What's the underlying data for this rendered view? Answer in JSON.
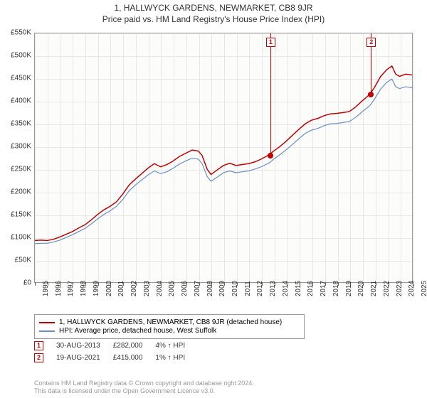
{
  "title_main": "1, HALLWYCK GARDENS, NEWMARKET, CB8 9JR",
  "title_sub": "Price paid vs. HM Land Registry's House Price Index (HPI)",
  "chart": {
    "type": "line",
    "background_color": "#fcfcfa",
    "grid_color": "#e8e8e8",
    "axis_color": "#999999",
    "label_fontsize": 10,
    "ylim": [
      0,
      550000
    ],
    "ytick_step": 50000,
    "y_prefix": "£",
    "y_suffix": "K",
    "x_years": [
      1995,
      1996,
      1997,
      1998,
      1999,
      2000,
      2001,
      2002,
      2003,
      2004,
      2005,
      2006,
      2007,
      2008,
      2009,
      2010,
      2011,
      2012,
      2013,
      2014,
      2015,
      2016,
      2017,
      2018,
      2019,
      2020,
      2021,
      2022,
      2023,
      2024,
      2025
    ],
    "series": [
      {
        "name": "red",
        "label": "1, HALLWYCK GARDENS, NEWMARKET, CB8 9JR (detached house)",
        "color": "#c00000",
        "width": 1.5,
        "points": [
          [
            1995.0,
            92000
          ],
          [
            1995.5,
            93000
          ],
          [
            1996.0,
            92000
          ],
          [
            1996.5,
            95000
          ],
          [
            1997.0,
            100000
          ],
          [
            1997.5,
            106000
          ],
          [
            1998.0,
            112000
          ],
          [
            1998.5,
            120000
          ],
          [
            1999.0,
            127000
          ],
          [
            1999.5,
            138000
          ],
          [
            2000.0,
            150000
          ],
          [
            2000.5,
            160000
          ],
          [
            2001.0,
            168000
          ],
          [
            2001.5,
            178000
          ],
          [
            2002.0,
            195000
          ],
          [
            2002.5,
            215000
          ],
          [
            2003.0,
            228000
          ],
          [
            2003.5,
            240000
          ],
          [
            2004.0,
            252000
          ],
          [
            2004.5,
            262000
          ],
          [
            2005.0,
            255000
          ],
          [
            2005.5,
            260000
          ],
          [
            2006.0,
            268000
          ],
          [
            2006.5,
            278000
          ],
          [
            2007.0,
            285000
          ],
          [
            2007.5,
            292000
          ],
          [
            2008.0,
            290000
          ],
          [
            2008.3,
            280000
          ],
          [
            2008.7,
            250000
          ],
          [
            2009.0,
            238000
          ],
          [
            2009.5,
            248000
          ],
          [
            2010.0,
            258000
          ],
          [
            2010.5,
            263000
          ],
          [
            2011.0,
            258000
          ],
          [
            2011.5,
            260000
          ],
          [
            2012.0,
            262000
          ],
          [
            2012.5,
            266000
          ],
          [
            2013.0,
            272000
          ],
          [
            2013.66,
            282000
          ],
          [
            2014.0,
            290000
          ],
          [
            2014.5,
            300000
          ],
          [
            2015.0,
            312000
          ],
          [
            2015.5,
            325000
          ],
          [
            2016.0,
            338000
          ],
          [
            2016.5,
            350000
          ],
          [
            2017.0,
            358000
          ],
          [
            2017.5,
            362000
          ],
          [
            2018.0,
            368000
          ],
          [
            2018.5,
            372000
          ],
          [
            2019.0,
            373000
          ],
          [
            2019.5,
            375000
          ],
          [
            2020.0,
            377000
          ],
          [
            2020.5,
            387000
          ],
          [
            2021.0,
            400000
          ],
          [
            2021.63,
            415000
          ],
          [
            2022.0,
            430000
          ],
          [
            2022.5,
            455000
          ],
          [
            2023.0,
            470000
          ],
          [
            2023.4,
            478000
          ],
          [
            2023.7,
            460000
          ],
          [
            2024.0,
            455000
          ],
          [
            2024.5,
            460000
          ],
          [
            2025.0,
            458000
          ]
        ]
      },
      {
        "name": "blue",
        "label": "HPI: Average price, detached house, West Suffolk",
        "color": "#6a8fc4",
        "width": 1.2,
        "points": [
          [
            1995.0,
            85000
          ],
          [
            1995.5,
            86000
          ],
          [
            1996.0,
            86000
          ],
          [
            1996.5,
            89000
          ],
          [
            1997.0,
            93000
          ],
          [
            1997.5,
            99000
          ],
          [
            1998.0,
            105000
          ],
          [
            1998.5,
            112000
          ],
          [
            1999.0,
            119000
          ],
          [
            1999.5,
            129000
          ],
          [
            2000.0,
            140000
          ],
          [
            2000.5,
            150000
          ],
          [
            2001.0,
            158000
          ],
          [
            2001.5,
            168000
          ],
          [
            2002.0,
            183000
          ],
          [
            2002.5,
            202000
          ],
          [
            2003.0,
            215000
          ],
          [
            2003.5,
            226000
          ],
          [
            2004.0,
            237000
          ],
          [
            2004.5,
            246000
          ],
          [
            2005.0,
            240000
          ],
          [
            2005.5,
            244000
          ],
          [
            2006.0,
            252000
          ],
          [
            2006.5,
            261000
          ],
          [
            2007.0,
            268000
          ],
          [
            2007.5,
            274000
          ],
          [
            2008.0,
            272000
          ],
          [
            2008.3,
            262000
          ],
          [
            2008.7,
            234000
          ],
          [
            2009.0,
            223000
          ],
          [
            2009.5,
            232000
          ],
          [
            2010.0,
            242000
          ],
          [
            2010.5,
            246000
          ],
          [
            2011.0,
            242000
          ],
          [
            2011.5,
            244000
          ],
          [
            2012.0,
            246000
          ],
          [
            2012.5,
            250000
          ],
          [
            2013.0,
            255000
          ],
          [
            2013.66,
            264000
          ],
          [
            2014.0,
            272000
          ],
          [
            2014.5,
            282000
          ],
          [
            2015.0,
            293000
          ],
          [
            2015.5,
            305000
          ],
          [
            2016.0,
            317000
          ],
          [
            2016.5,
            329000
          ],
          [
            2017.0,
            336000
          ],
          [
            2017.5,
            340000
          ],
          [
            2018.0,
            346000
          ],
          [
            2018.5,
            350000
          ],
          [
            2019.0,
            351000
          ],
          [
            2019.5,
            353000
          ],
          [
            2020.0,
            355000
          ],
          [
            2020.5,
            364000
          ],
          [
            2021.0,
            376000
          ],
          [
            2021.63,
            390000
          ],
          [
            2022.0,
            404000
          ],
          [
            2022.5,
            427000
          ],
          [
            2023.0,
            442000
          ],
          [
            2023.4,
            449000
          ],
          [
            2023.7,
            432000
          ],
          [
            2024.0,
            428000
          ],
          [
            2024.5,
            432000
          ],
          [
            2025.0,
            430000
          ]
        ]
      }
    ],
    "markers": [
      {
        "n": "1",
        "year": 2013.66,
        "value": 282000
      },
      {
        "n": "2",
        "year": 2021.63,
        "value": 415000
      }
    ]
  },
  "legend": {
    "title": null
  },
  "notes": [
    {
      "n": "1",
      "date": "30-AUG-2013",
      "price": "£282,000",
      "delta": "4% ↑ HPI"
    },
    {
      "n": "2",
      "date": "19-AUG-2021",
      "price": "£415,000",
      "delta": "1% ↑ HPI"
    }
  ],
  "footer_line1": "Contains HM Land Registry data © Crown copyright and database right 2024.",
  "footer_line2": "This data is licensed under the Open Government Licence v3.0.",
  "colors": {
    "marker_border": "#c00000"
  }
}
